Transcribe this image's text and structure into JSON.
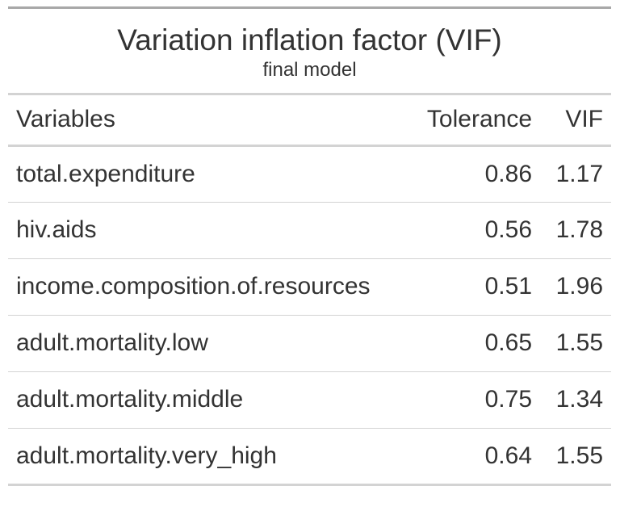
{
  "header": {
    "title": "Variation inflation factor (VIF)",
    "subtitle": "final model"
  },
  "columns": {
    "variables": "Variables",
    "tolerance": "Tolerance",
    "vif": "VIF"
  },
  "rows": [
    {
      "variable": "total.expenditure",
      "tolerance": "0.86",
      "vif": "1.17"
    },
    {
      "variable": "hiv.aids",
      "tolerance": "0.56",
      "vif": "1.78"
    },
    {
      "variable": "income.composition.of.resources",
      "tolerance": "0.51",
      "vif": "1.96"
    },
    {
      "variable": "adult.mortality.low",
      "tolerance": "0.65",
      "vif": "1.55"
    },
    {
      "variable": "adult.mortality.middle",
      "tolerance": "0.75",
      "vif": "1.34"
    },
    {
      "variable": "adult.mortality.very_high",
      "tolerance": "0.64",
      "vif": "1.55"
    }
  ]
}
